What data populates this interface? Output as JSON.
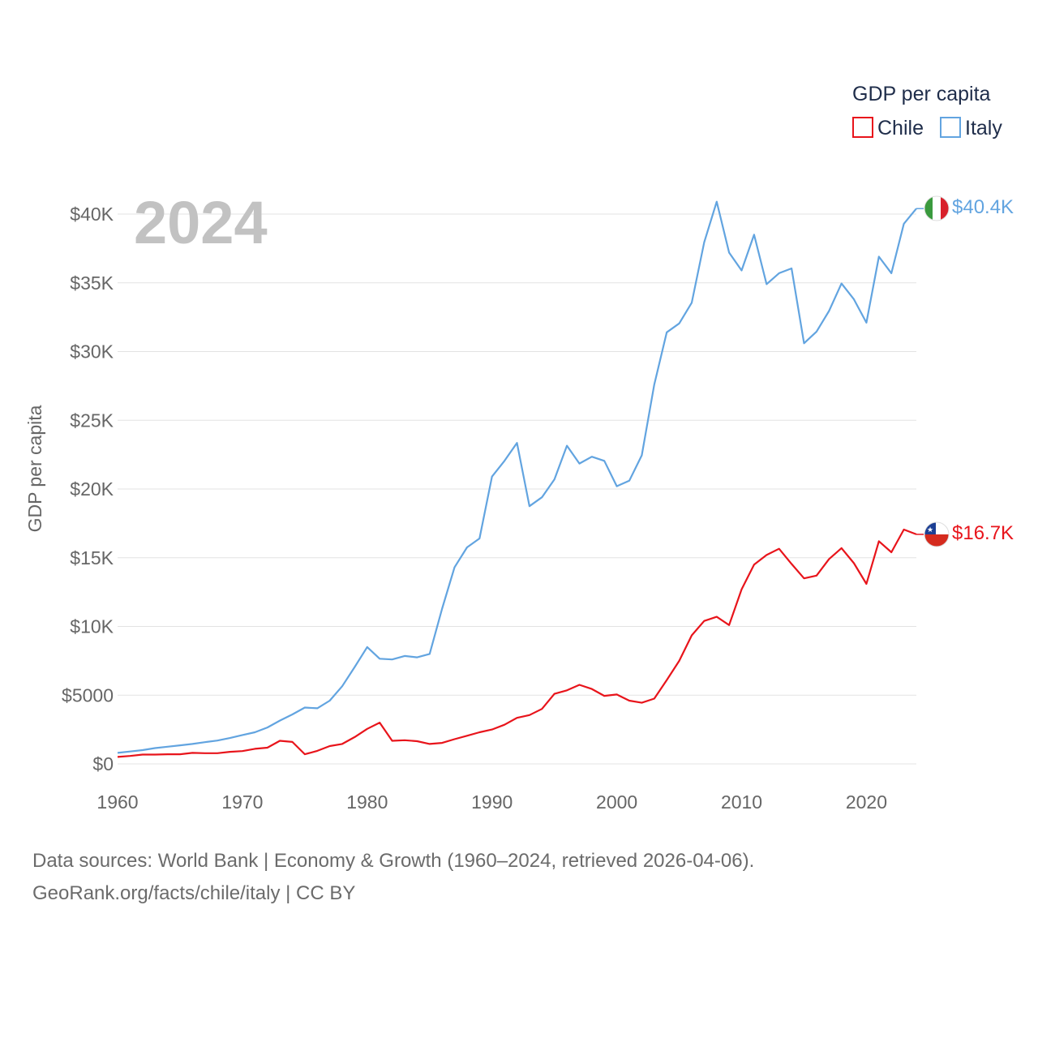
{
  "chart_data": {
    "type": "line",
    "title": "GDP per capita",
    "ylabel": "GDP per capita",
    "xlabel": "",
    "current_year_label": "2024",
    "xlim": [
      1960,
      2024
    ],
    "ylim": [
      0,
      42000
    ],
    "x_ticks": [
      {
        "value": 1960,
        "label": "1960"
      },
      {
        "value": 1970,
        "label": "1970"
      },
      {
        "value": 1980,
        "label": "1980"
      },
      {
        "value": 1990,
        "label": "1990"
      },
      {
        "value": 2000,
        "label": "2000"
      },
      {
        "value": 2010,
        "label": "2010"
      },
      {
        "value": 2020,
        "label": "2020"
      }
    ],
    "y_ticks": [
      {
        "value": 0,
        "label": "$0"
      },
      {
        "value": 5000,
        "label": "$5000"
      },
      {
        "value": 10000,
        "label": "$10K"
      },
      {
        "value": 15000,
        "label": "$15K"
      },
      {
        "value": 20000,
        "label": "$20K"
      },
      {
        "value": 25000,
        "label": "$25K"
      },
      {
        "value": 30000,
        "label": "$30K"
      },
      {
        "value": 35000,
        "label": "$35K"
      },
      {
        "value": 40000,
        "label": "$40K"
      }
    ],
    "legend_title": "GDP per capita",
    "legend_placement": "top-right",
    "series": [
      {
        "name": "Chile",
        "color": "#e8141b",
        "flag_icon": "chile-flag-icon",
        "end_label": "$16.7K",
        "x": [
          1960,
          1961,
          1962,
          1963,
          1964,
          1965,
          1966,
          1967,
          1968,
          1969,
          1970,
          1971,
          1972,
          1973,
          1974,
          1975,
          1976,
          1977,
          1978,
          1979,
          1980,
          1981,
          1982,
          1983,
          1984,
          1985,
          1986,
          1987,
          1988,
          1989,
          1990,
          1991,
          1992,
          1993,
          1994,
          1995,
          1996,
          1997,
          1998,
          1999,
          2000,
          2001,
          2002,
          2003,
          2004,
          2005,
          2006,
          2007,
          2008,
          2009,
          2010,
          2011,
          2012,
          2013,
          2014,
          2015,
          2016,
          2017,
          2018,
          2019,
          2020,
          2021,
          2022,
          2023,
          2024
        ],
        "values": [
          505,
          580,
          680,
          680,
          700,
          700,
          800,
          780,
          780,
          880,
          930,
          1100,
          1180,
          1680,
          1600,
          700,
          950,
          1300,
          1450,
          1950,
          2550,
          3000,
          1680,
          1720,
          1650,
          1450,
          1530,
          1800,
          2050,
          2300,
          2500,
          2850,
          3350,
          3550,
          4000,
          5100,
          5350,
          5750,
          5450,
          4950,
          5050,
          4600,
          4450,
          4750,
          6100,
          7500,
          9350,
          10400,
          10700,
          10100,
          12700,
          14500,
          15200,
          15650,
          14550,
          13500,
          13700,
          14900,
          15700,
          14600,
          13100,
          16200,
          15400,
          17050,
          16700
        ]
      },
      {
        "name": "Italy",
        "color": "#62a4e0",
        "flag_icon": "italy-flag-icon",
        "end_label": "$40.4K",
        "x": [
          1960,
          1961,
          1962,
          1963,
          1964,
          1965,
          1966,
          1967,
          1968,
          1969,
          1970,
          1971,
          1972,
          1973,
          1974,
          1975,
          1976,
          1977,
          1978,
          1979,
          1980,
          1981,
          1982,
          1983,
          1984,
          1985,
          1986,
          1987,
          1988,
          1989,
          1990,
          1991,
          1992,
          1993,
          1994,
          1995,
          1996,
          1997,
          1998,
          1999,
          2000,
          2001,
          2002,
          2003,
          2004,
          2005,
          2006,
          2007,
          2008,
          2009,
          2010,
          2011,
          2012,
          2013,
          2014,
          2015,
          2016,
          2017,
          2018,
          2019,
          2020,
          2021,
          2022,
          2023,
          2024
        ],
        "values": [
          800,
          900,
          1000,
          1150,
          1250,
          1350,
          1450,
          1580,
          1700,
          1880,
          2100,
          2300,
          2650,
          3150,
          3600,
          4100,
          4050,
          4600,
          5650,
          7050,
          8500,
          7650,
          7600,
          7850,
          7750,
          8000,
          11300,
          14300,
          15750,
          16400,
          20900,
          22050,
          23350,
          18750,
          19400,
          20700,
          23150,
          21850,
          22350,
          22050,
          20200,
          20600,
          22450,
          27600,
          31400,
          32050,
          33550,
          37950,
          40900,
          37200,
          35900,
          38500,
          34900,
          35700,
          36050,
          30600,
          31450,
          32950,
          34950,
          33800,
          32100,
          36900,
          35700,
          39300,
          40400
        ]
      }
    ],
    "source_text": "Data sources: World Bank | Economy & Growth (1960–2024, retrieved 2026-04-06).",
    "credit_text": "GeoRank.org/facts/chile/italy | CC BY"
  }
}
